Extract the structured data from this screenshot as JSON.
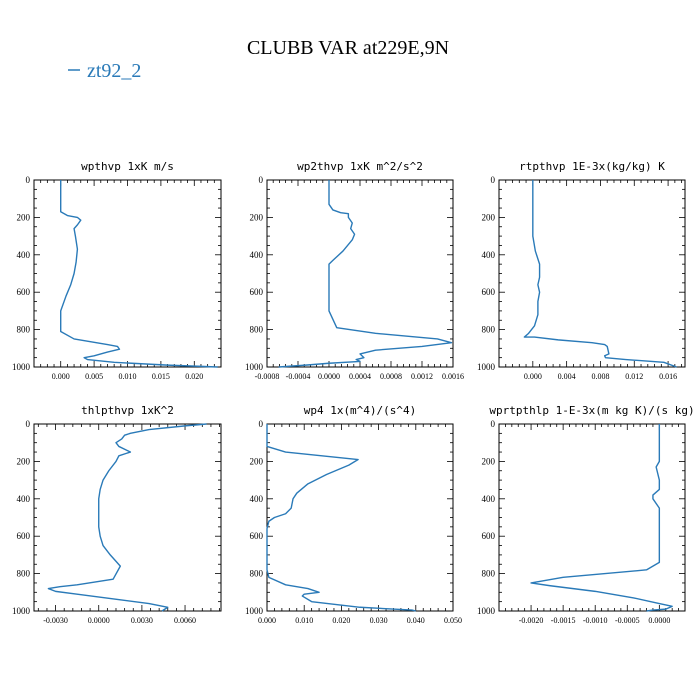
{
  "figure": {
    "title": "CLUBB VAR at229E,9N",
    "legend": [
      {
        "name": "zt92_2",
        "color": "#2a7ab8"
      }
    ]
  },
  "chart_data": [
    {
      "type": "line",
      "title": "wpthvp  1xK m/s",
      "ylim": [
        1000,
        0
      ],
      "yticks": [
        0,
        200,
        400,
        600,
        800,
        1000
      ],
      "xlim": [
        -0.004,
        0.024
      ],
      "xticks": [
        0.0,
        0.005,
        0.01,
        0.015,
        0.02
      ],
      "xtick_labels": [
        "0.000",
        "0.005",
        "0.010",
        "0.015",
        "0.020"
      ],
      "series": [
        {
          "name": "zt92_2",
          "x": [
            0.0,
            0.0,
            0.0,
            0.0,
            0.0,
            0.0,
            0.001,
            0.0025,
            0.003,
            0.0025,
            0.002,
            0.0022,
            0.0025,
            0.0023,
            0.002,
            0.0015,
            0.0008,
            0.0,
            0.0,
            0.002,
            0.007,
            0.0085,
            0.0088,
            0.007,
            0.005,
            0.0035,
            0.004,
            0.008,
            0.016,
            0.0235
          ],
          "y": [
            0,
            50,
            100,
            130,
            150,
            170,
            190,
            200,
            215,
            240,
            260,
            300,
            370,
            440,
            500,
            560,
            620,
            700,
            810,
            850,
            880,
            890,
            905,
            920,
            940,
            950,
            960,
            975,
            990,
            1000
          ]
        }
      ]
    },
    {
      "type": "line",
      "title": "wp2thvp  1xK m^2/s^2",
      "ylim": [
        1000,
        0
      ],
      "yticks": [
        0,
        200,
        400,
        600,
        800,
        1000
      ],
      "xlim": [
        -0.0008,
        0.0016
      ],
      "xticks": [
        -0.0008,
        -0.0004,
        0.0,
        0.0004,
        0.0008,
        0.0012,
        0.0016
      ],
      "xtick_labels": [
        "-0.0008",
        "-0.0004",
        "0.0000",
        "0.0004",
        "0.0008",
        "0.0012",
        "0.0016"
      ],
      "series": [
        {
          "name": "zt92_2",
          "x": [
            0.0,
            0.0,
            0.0,
            5e-05,
            0.00015,
            0.00025,
            0.00025,
            0.0003,
            0.00028,
            0.00033,
            0.0003,
            0.00018,
            5e-05,
            0.0,
            0.0,
            0.0,
            0.0,
            0.0001,
            0.0006,
            0.0014,
            0.00158,
            0.0012,
            0.0006,
            0.0004,
            0.00045,
            0.00035,
            0.0004,
            0.0,
            -0.0003,
            -0.00065
          ],
          "y": [
            0,
            60,
            130,
            160,
            175,
            180,
            200,
            230,
            260,
            290,
            320,
            380,
            430,
            450,
            500,
            600,
            700,
            790,
            820,
            850,
            870,
            890,
            910,
            930,
            950,
            960,
            970,
            980,
            990,
            1000
          ]
        }
      ]
    },
    {
      "type": "line",
      "title": "rtpthvp  1E-3x(kg/kg) K",
      "ylim": [
        1000,
        0
      ],
      "yticks": [
        0,
        200,
        400,
        600,
        800,
        1000
      ],
      "xlim": [
        -0.004,
        0.018
      ],
      "xticks": [
        0.0,
        0.004,
        0.008,
        0.012,
        0.016
      ],
      "xtick_labels": [
        "0.000",
        "0.004",
        "0.008",
        "0.012",
        "0.016"
      ],
      "series": [
        {
          "name": "zt92_2",
          "x": [
            0.0,
            0.0,
            0.0,
            0.0,
            0.0003,
            0.0008,
            0.0008,
            0.0006,
            0.0008,
            0.0006,
            0.0006,
            0.0002,
            -0.0005,
            -0.001,
            0.0002,
            0.003,
            0.007,
            0.0085,
            0.0088,
            0.009,
            0.0085,
            0.0086,
            0.011,
            0.0155,
            0.017
          ],
          "y": [
            0,
            100,
            200,
            300,
            380,
            450,
            520,
            560,
            600,
            650,
            720,
            780,
            820,
            840,
            840,
            855,
            870,
            880,
            890,
            930,
            940,
            950,
            960,
            975,
            1000
          ]
        }
      ]
    },
    {
      "type": "line",
      "title": "thlpthvp  1xK^2",
      "ylim": [
        1000,
        0
      ],
      "yticks": [
        0,
        200,
        400,
        600,
        800,
        1000
      ],
      "xlim": [
        -0.0045,
        0.0085
      ],
      "xticks": [
        -0.003,
        0.0,
        0.003,
        0.006
      ],
      "xtick_labels": [
        "-0.0030",
        "0.0000",
        "0.0030",
        "0.0060"
      ],
      "series": [
        {
          "name": "zt92_2",
          "x": [
            0.0075,
            0.006,
            0.0035,
            0.0022,
            0.0018,
            0.0016,
            0.0012,
            0.0014,
            0.0022,
            0.0014,
            0.0012,
            0.0007,
            0.0003,
            0.0001,
            0.0,
            0.0,
            0.0,
            0.0,
            0.0001,
            0.0003,
            0.0008,
            0.0015,
            0.001,
            -0.0015,
            -0.0027,
            -0.0035,
            -0.003,
            -0.0015,
            0.0015,
            0.0035,
            0.0048,
            0.0044
          ],
          "y": [
            0,
            10,
            30,
            50,
            60,
            80,
            100,
            120,
            150,
            170,
            200,
            250,
            300,
            350,
            400,
            450,
            500,
            550,
            600,
            650,
            700,
            760,
            830,
            860,
            870,
            880,
            895,
            910,
            940,
            960,
            980,
            1000
          ]
        }
      ]
    },
    {
      "type": "line",
      "title": "wp4  1x(m^4)/(s^4)",
      "ylim": [
        1000,
        0
      ],
      "yticks": [
        0,
        200,
        400,
        600,
        800,
        1000
      ],
      "xlim": [
        0.0,
        0.05
      ],
      "xticks": [
        0.0,
        0.01,
        0.02,
        0.03,
        0.04,
        0.05
      ],
      "xtick_labels": [
        "0.000",
        "0.010",
        "0.020",
        "0.030",
        "0.040",
        "0.050"
      ],
      "series": [
        {
          "name": "zt92_2",
          "x": [
            0.0,
            0.0,
            0.0,
            0.005,
            0.0245,
            0.022,
            0.016,
            0.011,
            0.008,
            0.007,
            0.0068,
            0.0065,
            0.005,
            0.002,
            0.0005,
            0.0,
            0.0,
            0.0,
            0.0,
            0.0,
            0.0005,
            0.005,
            0.011,
            0.014,
            0.01,
            0.0095,
            0.012,
            0.025,
            0.039,
            0.04
          ],
          "y": [
            0,
            60,
            120,
            150,
            190,
            220,
            270,
            320,
            370,
            400,
            420,
            450,
            480,
            500,
            520,
            560,
            600,
            650,
            700,
            780,
            820,
            860,
            880,
            900,
            910,
            920,
            950,
            980,
            995,
            1000
          ]
        }
      ]
    },
    {
      "type": "line",
      "title": "wprtpthlp  1-E-3x(m kg K)/(s kg)",
      "ylim": [
        1000,
        0
      ],
      "yticks": [
        0,
        200,
        400,
        600,
        800,
        1000
      ],
      "xlim": [
        -0.0025,
        0.0004
      ],
      "xticks": [
        -0.002,
        -0.0015,
        -0.001,
        -0.0005,
        0.0
      ],
      "xtick_labels": [
        "-0.0020",
        "-0.0015",
        "-0.0010",
        "-0.0005",
        "0.0000"
      ],
      "series": [
        {
          "name": "zt92_2",
          "x": [
            0.0,
            0.0,
            0.0,
            0.0,
            -5e-05,
            0.0,
            0.0,
            -0.0001,
            -0.0001,
            0.0,
            0.0,
            0.0,
            -0.0002,
            -0.0015,
            -0.002,
            -0.0017,
            -0.001,
            -0.0004,
            0.0,
            0.0002,
            0.0001,
            -0.0001,
            -0.0002
          ],
          "y": [
            0,
            50,
            100,
            200,
            230,
            300,
            350,
            380,
            400,
            450,
            600,
            740,
            780,
            820,
            850,
            865,
            895,
            930,
            960,
            975,
            990,
            995,
            1000
          ]
        }
      ]
    }
  ]
}
